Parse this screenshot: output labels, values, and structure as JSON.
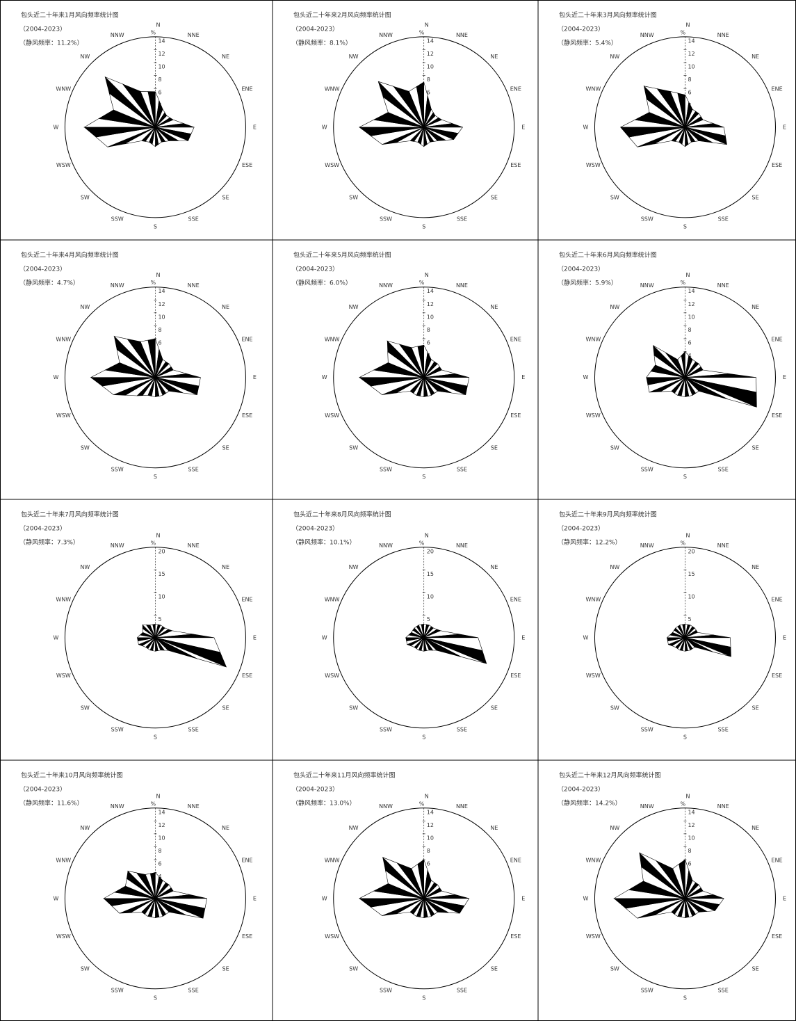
{
  "chart_data": [
    {
      "type": "windrose",
      "title": "包头近二十年来1月风向频率统计图",
      "subtitle": "（2004-2023）",
      "note": "（静风频率：11.2%）",
      "unit": "%",
      "categories": [
        "N",
        "NNE",
        "NE",
        "ENE",
        "E",
        "ESE",
        "SE",
        "SSE",
        "S",
        "SSW",
        "SW",
        "WSW",
        "W",
        "WNW",
        "NW",
        "NNW"
      ],
      "values": [
        5.5,
        3,
        2.5,
        3,
        6,
        5.5,
        3,
        2.5,
        3,
        2.5,
        3,
        8,
        11,
        7,
        11,
        6
      ],
      "rlim": [
        0,
        14
      ],
      "rticks": [
        2,
        4,
        6,
        8,
        10,
        12,
        14
      ]
    },
    {
      "type": "windrose",
      "title": "包头近二十年来2月风向频率统计图",
      "subtitle": "（2004-2023）",
      "note": "（静风频率：8.1%）",
      "unit": "%",
      "categories": [
        "N",
        "NNE",
        "NE",
        "ENE",
        "E",
        "ESE",
        "SE",
        "SSE",
        "S",
        "SSW",
        "SW",
        "WSW",
        "W",
        "WNW",
        "NW",
        "NNW"
      ],
      "values": [
        7,
        3,
        2.5,
        3,
        6,
        5,
        3,
        2.5,
        3,
        2.5,
        3,
        7,
        10,
        6,
        10,
        6
      ],
      "rlim": [
        0,
        14
      ],
      "rticks": [
        2,
        4,
        6,
        8,
        10,
        12,
        14
      ]
    },
    {
      "type": "windrose",
      "title": "包头近二十年来3月风向频率统计图",
      "subtitle": "（2004-2023）",
      "note": "（静风频率：5.4%）",
      "unit": "%",
      "categories": [
        "N",
        "NNE",
        "NE",
        "ENE",
        "E",
        "ESE",
        "SE",
        "SSE",
        "S",
        "SSW",
        "SW",
        "WSW",
        "W",
        "WNW",
        "NW",
        "NNW"
      ],
      "values": [
        5,
        3,
        3,
        3,
        6,
        7,
        3,
        2.5,
        3,
        2.5,
        3,
        8,
        10,
        6,
        9,
        6
      ],
      "rlim": [
        0,
        14
      ],
      "rticks": [
        2,
        4,
        6,
        8,
        10,
        12,
        14
      ]
    },
    {
      "type": "windrose",
      "title": "包头近二十年来4月风向频率统计图",
      "subtitle": "（2004-2023）",
      "note": "（静风频率：4.7%）",
      "unit": "%",
      "categories": [
        "N",
        "NNE",
        "NE",
        "ENE",
        "E",
        "ESE",
        "SE",
        "SSE",
        "S",
        "SSW",
        "SW",
        "WSW",
        "W",
        "WNW",
        "NW",
        "NNW"
      ],
      "values": [
        6,
        3,
        3,
        3,
        7,
        7,
        3,
        3,
        3,
        3,
        4,
        7,
        10,
        6,
        9,
        6
      ],
      "rlim": [
        0,
        14
      ],
      "rticks": [
        2,
        4,
        6,
        8,
        10,
        12,
        14
      ]
    },
    {
      "type": "windrose",
      "title": "包头近二十年来5月风向频率统计图",
      "subtitle": "（2004-2023）",
      "note": "（静风频率：6.0%）",
      "unit": "%",
      "categories": [
        "N",
        "NNE",
        "NE",
        "ENE",
        "E",
        "ESE",
        "SE",
        "SSE",
        "S",
        "SSW",
        "SW",
        "WSW",
        "W",
        "WNW",
        "NW",
        "NNW"
      ],
      "values": [
        5,
        3,
        3,
        3,
        7,
        7,
        3,
        3,
        3,
        3,
        3,
        7,
        10,
        6,
        8,
        5
      ],
      "rlim": [
        0,
        14
      ],
      "rticks": [
        2,
        4,
        6,
        8,
        10,
        12,
        14
      ]
    },
    {
      "type": "windrose",
      "title": "包头近二十年来6月风向频率统计图",
      "subtitle": "（2004-2023）",
      "note": "（静风频率：5.9%）",
      "unit": "%",
      "categories": [
        "N",
        "NNE",
        "NE",
        "ENE",
        "E",
        "ESE",
        "SE",
        "SSE",
        "S",
        "SSW",
        "SW",
        "WSW",
        "W",
        "WNW",
        "NW",
        "NNW"
      ],
      "values": [
        4,
        3,
        3,
        3,
        11,
        12,
        3,
        3,
        3,
        3,
        3,
        6,
        6,
        5,
        7,
        3
      ],
      "rlim": [
        0,
        14
      ],
      "rticks": [
        2,
        4,
        6,
        8,
        10,
        12,
        14
      ]
    },
    {
      "type": "windrose",
      "title": "包头近二十年来7月风向频率统计图",
      "subtitle": "（2004-2023）",
      "note": "（静风频率：7.3%）",
      "unit": "%",
      "categories": [
        "N",
        "NNE",
        "NE",
        "ENE",
        "E",
        "ESE",
        "SE",
        "SSE",
        "S",
        "SSW",
        "SW",
        "WSW",
        "W",
        "WNW",
        "NW",
        "NNW"
      ],
      "values": [
        3,
        3,
        3,
        4,
        13,
        17,
        4,
        3,
        3,
        3,
        3,
        4,
        4,
        3,
        4,
        3
      ],
      "rlim": [
        0,
        20
      ],
      "rticks": [
        5,
        10,
        15,
        20
      ]
    },
    {
      "type": "windrose",
      "title": "包头近二十年来8月风向频率统计图",
      "subtitle": "（2004-2023）",
      "note": "（静风频率：10.1%）",
      "unit": "%",
      "categories": [
        "N",
        "NNE",
        "NE",
        "ENE",
        "E",
        "ESE",
        "SE",
        "SSE",
        "S",
        "SSW",
        "SW",
        "WSW",
        "W",
        "WNW",
        "NW",
        "NNW"
      ],
      "values": [
        3,
        3,
        3,
        4,
        12,
        15,
        4,
        3,
        3,
        3,
        3,
        4,
        4,
        3,
        3,
        3
      ],
      "rlim": [
        0,
        20
      ],
      "rticks": [
        5,
        10,
        15,
        20
      ]
    },
    {
      "type": "windrose",
      "title": "包头近二十年来9月风向频率统计图",
      "subtitle": "（2004-2023）",
      "note": "（静风频率：12.2%）",
      "unit": "%",
      "categories": [
        "N",
        "NNE",
        "NE",
        "ENE",
        "E",
        "ESE",
        "SE",
        "SSE",
        "S",
        "SSW",
        "SW",
        "WSW",
        "W",
        "WNW",
        "NW",
        "NNW"
      ],
      "values": [
        3,
        3,
        3,
        3,
        10,
        11,
        3,
        3,
        3,
        3,
        3,
        4,
        4,
        3,
        3,
        3
      ],
      "rlim": [
        0,
        20
      ],
      "rticks": [
        5,
        10,
        15,
        20
      ]
    },
    {
      "type": "windrose",
      "title": "包头近二十年来10月风向频率统计图",
      "subtitle": "（2004-2023）",
      "note": "（静风频率：11.6%）",
      "unit": "%",
      "categories": [
        "N",
        "NNE",
        "NE",
        "ENE",
        "E",
        "ESE",
        "SE",
        "SSE",
        "S",
        "SSW",
        "SW",
        "WSW",
        "W",
        "WNW",
        "NW",
        "NNW"
      ],
      "values": [
        4,
        3,
        3,
        3,
        8,
        8,
        3,
        3,
        3,
        3,
        3,
        6,
        8,
        5,
        6,
        4
      ],
      "rlim": [
        0,
        14
      ],
      "rticks": [
        2,
        4,
        6,
        8,
        10,
        12,
        14
      ]
    },
    {
      "type": "windrose",
      "title": "包头近二十年来11月风向频率统计图",
      "subtitle": "（2004-2023）",
      "note": "（静风频率：13.0%）",
      "unit": "%",
      "categories": [
        "N",
        "NNE",
        "NE",
        "ENE",
        "E",
        "ESE",
        "SE",
        "SSE",
        "S",
        "SSW",
        "SW",
        "WSW",
        "W",
        "WNW",
        "NW",
        "NNW"
      ],
      "values": [
        6,
        3,
        3,
        3,
        7,
        6,
        3,
        3,
        3,
        3,
        3,
        7,
        10,
        6,
        9,
        5
      ],
      "rlim": [
        0,
        14
      ],
      "rticks": [
        2,
        4,
        6,
        8,
        10,
        12,
        14
      ]
    },
    {
      "type": "windrose",
      "title": "包头近二十年来12月风向频率统计图",
      "subtitle": "（2004-2023）",
      "note": "（静风频率：14.2%）",
      "unit": "%",
      "categories": [
        "N",
        "NNE",
        "NE",
        "ENE",
        "E",
        "ESE",
        "SE",
        "SSE",
        "S",
        "SSW",
        "SW",
        "WSW",
        "W",
        "WNW",
        "NW",
        "NNW"
      ],
      "values": [
        6,
        3,
        3,
        3,
        6,
        5,
        3,
        3,
        3,
        3,
        3,
        8,
        11,
        7,
        10,
        5
      ],
      "rlim": [
        0,
        14
      ],
      "rticks": [
        2,
        4,
        6,
        8,
        10,
        12,
        14
      ]
    }
  ]
}
